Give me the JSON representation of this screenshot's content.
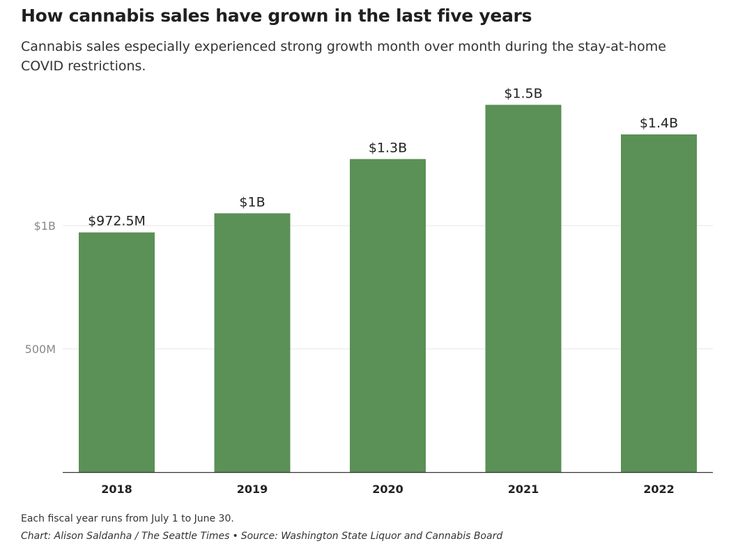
{
  "header": {
    "title": "How cannabis sales have grown in the last five years",
    "subtitle": "Cannabis sales especially experienced strong growth month over month during the stay-at-home COVID restrictions."
  },
  "footer": {
    "note": "Each fiscal year runs from July 1 to June 30.",
    "credit": "Chart: Alison Saldanha / The Seattle Times",
    "separator": "•",
    "source": "Source: Washington State Liquor and Cannabis Board"
  },
  "colors": {
    "bar": "#5b9056",
    "gridline": "#e6e6e6",
    "axis": "#333333",
    "tick_text": "#888888"
  },
  "chart_data": {
    "type": "bar",
    "categories": [
      "2018",
      "2019",
      "2020",
      "2021",
      "2022"
    ],
    "values": [
      972500000,
      1050000000,
      1270000000,
      1490000000,
      1370000000
    ],
    "data_labels": [
      "$972.5M",
      "$1B",
      "$1.3B",
      "$1.5B",
      "$1.4B"
    ],
    "yticks": [
      {
        "value": 500000000,
        "label": "500M"
      },
      {
        "value": 1000000000,
        "label": "$1B"
      }
    ],
    "ylim": [
      0,
      1500000000
    ],
    "grid": true,
    "xlabel": "",
    "ylabel": ""
  }
}
